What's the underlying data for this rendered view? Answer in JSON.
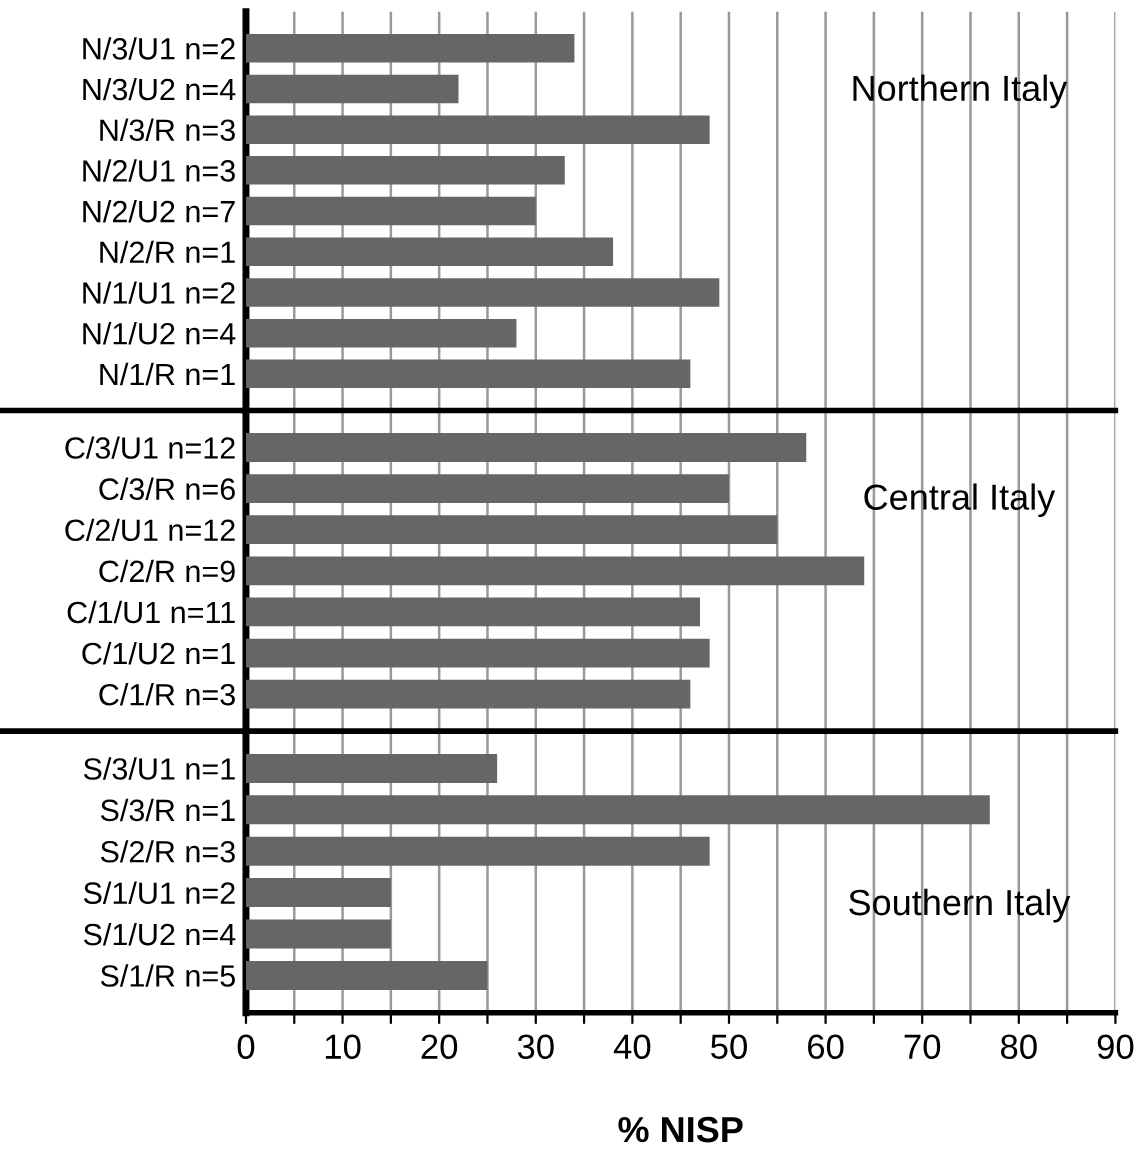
{
  "chart_data": [
    {
      "type": "bar",
      "orientation": "horizontal",
      "categories": [
        "N/3/U1 n=2",
        "N/3/U2 n=4",
        "N/3/R n=3",
        "N/2/U1 n=3",
        "N/2/U2 n=7",
        "N/2/R n=1",
        "N/1/U1 n=2",
        "N/1/U2 n=4",
        "N/1/R n=1"
      ],
      "values": [
        34,
        22,
        48,
        33,
        30,
        38,
        49,
        28,
        46
      ],
      "color": "#666666",
      "xlim": [
        0,
        90
      ],
      "xticks": [
        0,
        {
          "value": 5,
          "label": null
        },
        10,
        {
          "value": 15,
          "label": null
        },
        20,
        {
          "value": 25,
          "label": null
        },
        30,
        {
          "value": 35,
          "label": null
        },
        40,
        {
          "value": 45,
          "label": null
        },
        50,
        {
          "value": 55,
          "label": null
        },
        60,
        {
          "value": 65,
          "label": null
        },
        70,
        {
          "value": 75,
          "label": null
        },
        80,
        {
          "value": 85,
          "label": null
        },
        90
      ],
      "grid": "x",
      "tick_labels": "y",
      "annotations": [
        "Northern Italy"
      ]
    },
    {
      "type": "bar",
      "orientation": "horizontal",
      "categories": [
        "C/3/U1 n=12",
        "C/3/R n=6",
        "C/2/U1 n=12",
        "C/2/R n=9",
        "C/1/U1 n=11",
        "C/1/U2 n=1",
        "C/1/R n=3"
      ],
      "values": [
        58,
        50,
        55,
        64,
        47,
        48,
        46
      ],
      "color": "#666666",
      "xlim": [
        0,
        90
      ],
      "xticks": [
        0,
        {
          "value": 5,
          "label": null
        },
        10,
        {
          "value": 15,
          "label": null
        },
        20,
        {
          "value": 25,
          "label": null
        },
        30,
        {
          "value": 35,
          "label": null
        },
        40,
        {
          "value": 45,
          "label": null
        },
        50,
        {
          "value": 55,
          "label": null
        },
        60,
        {
          "value": 65,
          "label": null
        },
        70,
        {
          "value": 75,
          "label": null
        },
        80,
        {
          "value": 85,
          "label": null
        },
        90
      ],
      "grid": "x",
      "tick_labels": "y",
      "annotations": [
        "Central Italy"
      ]
    },
    {
      "type": "bar",
      "orientation": "horizontal",
      "categories": [
        "S/3/U1 n=1",
        "S/3/R n=1",
        "S/2/R n=3",
        "S/1/U1 n=2",
        "S/1/U2 n=4",
        "S/1/R n=5"
      ],
      "values": [
        26,
        77,
        48,
        15,
        15,
        25
      ],
      "color": "#666666",
      "xlim": [
        0,
        90
      ],
      "xticks": [
        0,
        {
          "value": 5,
          "label": null
        },
        10,
        {
          "value": 15,
          "label": null
        },
        20,
        {
          "value": 25,
          "label": null
        },
        30,
        {
          "value": 35,
          "label": null
        },
        40,
        {
          "value": 45,
          "label": null
        },
        50,
        {
          "value": 55,
          "label": null
        },
        60,
        {
          "value": 65,
          "label": null
        },
        70,
        {
          "value": 75,
          "label": null
        },
        80,
        {
          "value": 85,
          "label": null
        },
        90
      ],
      "grid": "x",
      "xlabel": "% NISP",
      "annotations": [
        "Southern Italy"
      ]
    }
  ]
}
